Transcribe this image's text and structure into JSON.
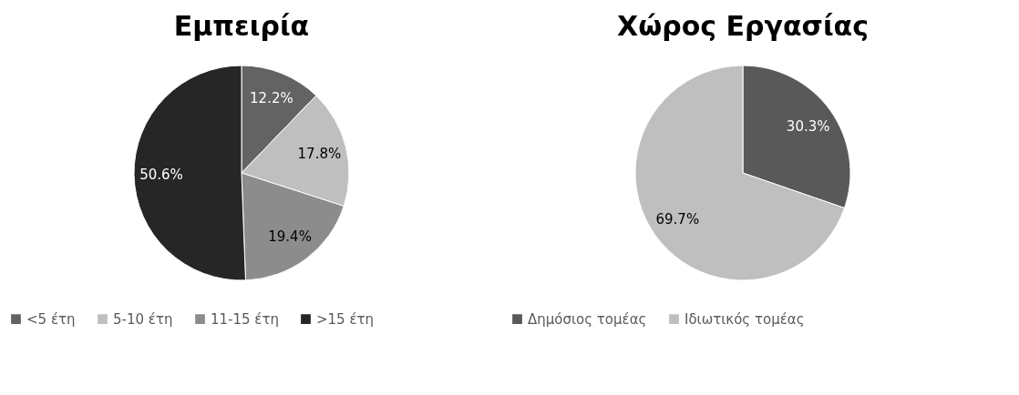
{
  "chart_data": [
    {
      "type": "pie",
      "title": "Εμπειρία",
      "categories": [
        "<5 έτη",
        "5-10 έτη",
        "11-15 έτη",
        ">15 έτη"
      ],
      "values": [
        12.2,
        17.8,
        19.4,
        50.6
      ],
      "colors": [
        "#636363",
        "#bfbfbf",
        "#8c8c8c",
        "#262626"
      ],
      "value_labels": [
        "12.2%",
        "17.8%",
        "19.4%",
        "50.6%"
      ],
      "legend": "bottom"
    },
    {
      "type": "pie",
      "title": "Χώρος Εργασίας",
      "categories": [
        "Δημόσιος τομέας",
        "Ιδιωτικός τομέας"
      ],
      "values": [
        30.3,
        69.7
      ],
      "colors": [
        "#595959",
        "#bfbfbf"
      ],
      "value_labels": [
        "30.3%",
        "69.7%"
      ],
      "legend": "bottom"
    }
  ]
}
